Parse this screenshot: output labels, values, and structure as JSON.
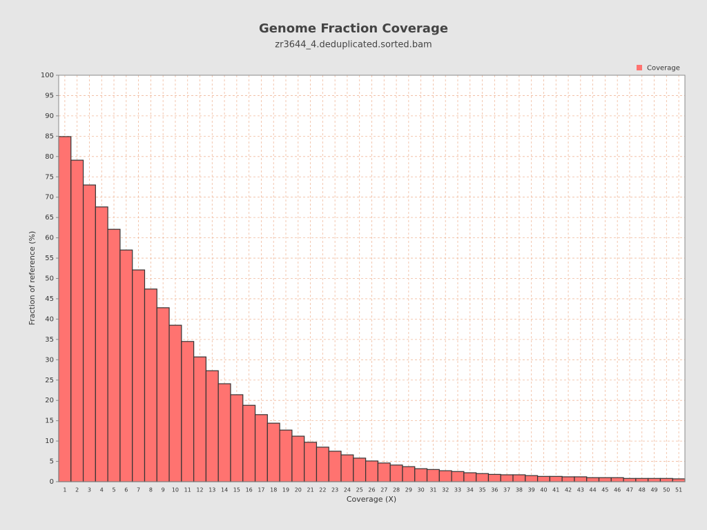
{
  "chart_data": {
    "type": "bar",
    "title": "Genome Fraction Coverage",
    "subtitle": "zr3644_4.deduplicated.sorted.bam",
    "x_label": "Coverage (X)",
    "y_label": "Fraction of reference (%)",
    "categories": [
      "1",
      "2",
      "3",
      "4",
      "5",
      "6",
      "7",
      "8",
      "9",
      "10",
      "11",
      "12",
      "13",
      "14",
      "15",
      "16",
      "17",
      "18",
      "19",
      "20",
      "21",
      "22",
      "23",
      "24",
      "25",
      "26",
      "27",
      "28",
      "29",
      "30",
      "31",
      "32",
      "33",
      "34",
      "35",
      "36",
      "37",
      "38",
      "39",
      "40",
      "41",
      "42",
      "43",
      "44",
      "45",
      "46",
      "47",
      "48",
      "49",
      "50",
      "51"
    ],
    "series": [
      {
        "name": "Coverage",
        "color": "#ff7370",
        "values": [
          84.9,
          79.1,
          73.0,
          67.6,
          62.1,
          57.0,
          52.1,
          47.4,
          42.8,
          38.5,
          34.5,
          30.7,
          27.3,
          24.1,
          21.4,
          18.8,
          16.5,
          14.4,
          12.7,
          11.2,
          9.7,
          8.5,
          7.5,
          6.6,
          5.8,
          5.1,
          4.6,
          4.1,
          3.7,
          3.2,
          3.0,
          2.7,
          2.5,
          2.2,
          2.0,
          1.8,
          1.7,
          1.7,
          1.5,
          1.3,
          1.3,
          1.2,
          1.2,
          1.0,
          1.0,
          1.0,
          0.8,
          0.8,
          0.8,
          0.8,
          0.7
        ]
      }
    ],
    "ylim": [
      0,
      100
    ],
    "yticks": [
      0,
      5,
      10,
      15,
      20,
      25,
      30,
      35,
      40,
      45,
      50,
      55,
      60,
      65,
      70,
      75,
      80,
      85,
      90,
      95,
      100
    ],
    "grid": true,
    "legend": "top-right"
  }
}
